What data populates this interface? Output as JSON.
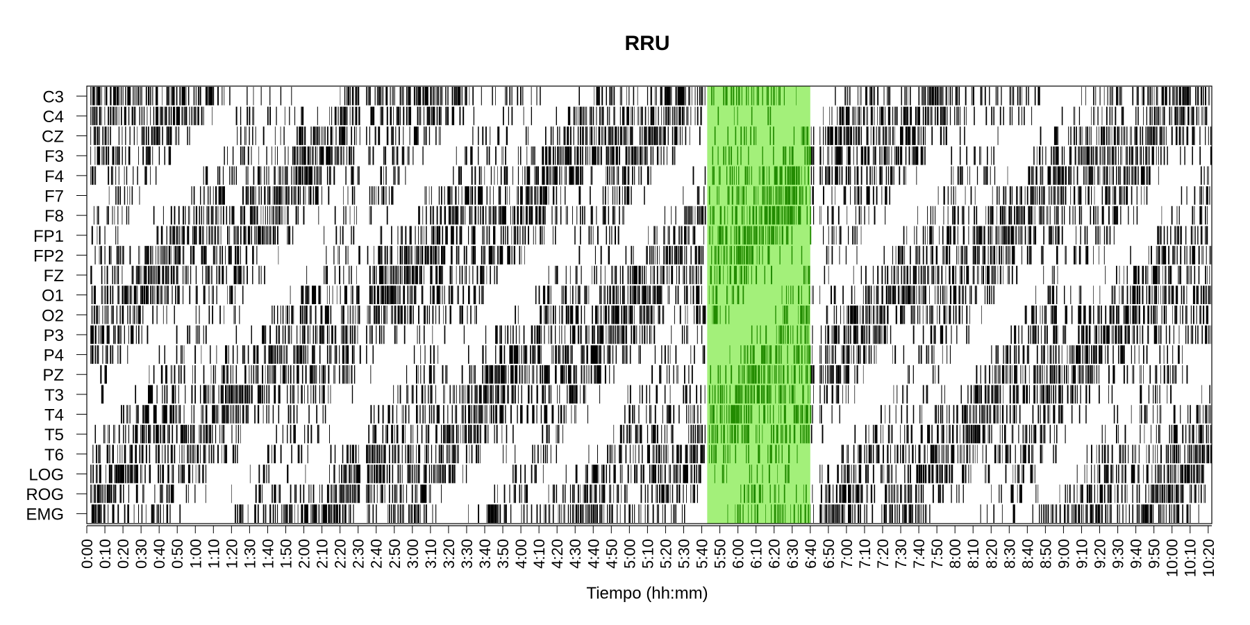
{
  "chart_data": {
    "type": "heatmap",
    "title": "RRU",
    "xlabel": "Tiempo (hh:mm)",
    "ylabel": "",
    "channels": [
      "C3",
      "C4",
      "CZ",
      "F3",
      "F4",
      "F7",
      "F8",
      "FP1",
      "FP2",
      "FZ",
      "O1",
      "O2",
      "P3",
      "P4",
      "PZ",
      "T3",
      "T4",
      "T5",
      "T6",
      "LOG",
      "ROG",
      "EMG"
    ],
    "x_ticks": [
      "0:00",
      "0:10",
      "0:20",
      "0:30",
      "0:40",
      "0:50",
      "1:00",
      "1:10",
      "1:20",
      "1:30",
      "1:40",
      "1:50",
      "2:00",
      "2:10",
      "2:20",
      "2:30",
      "2:40",
      "2:50",
      "3:00",
      "3:10",
      "3:20",
      "3:30",
      "3:40",
      "3:50",
      "4:00",
      "4:10",
      "4:20",
      "4:30",
      "4:40",
      "4:50",
      "5:00",
      "5:10",
      "5:20",
      "5:30",
      "5:40",
      "5:50",
      "6:00",
      "6:10",
      "6:20",
      "6:30",
      "6:40",
      "6:50",
      "7:00",
      "7:10",
      "7:20",
      "7:30",
      "7:40",
      "7:50",
      "8:00",
      "8:10",
      "8:20",
      "8:30",
      "8:40",
      "8:50",
      "9:00",
      "9:10",
      "9:20",
      "9:30",
      "9:40",
      "9:50",
      "10:00",
      "10:10",
      "10:20"
    ],
    "x_range_minutes": [
      0,
      622
    ],
    "highlight": {
      "start_minutes": 343,
      "end_minutes": 400,
      "fill": "#a3f07a",
      "mark_color": "#228b00"
    },
    "mark_color": "#000000",
    "gaps_minutes": [
      [
        151,
        154
      ],
      [
        342,
        344
      ],
      [
        402,
        405
      ]
    ]
  }
}
